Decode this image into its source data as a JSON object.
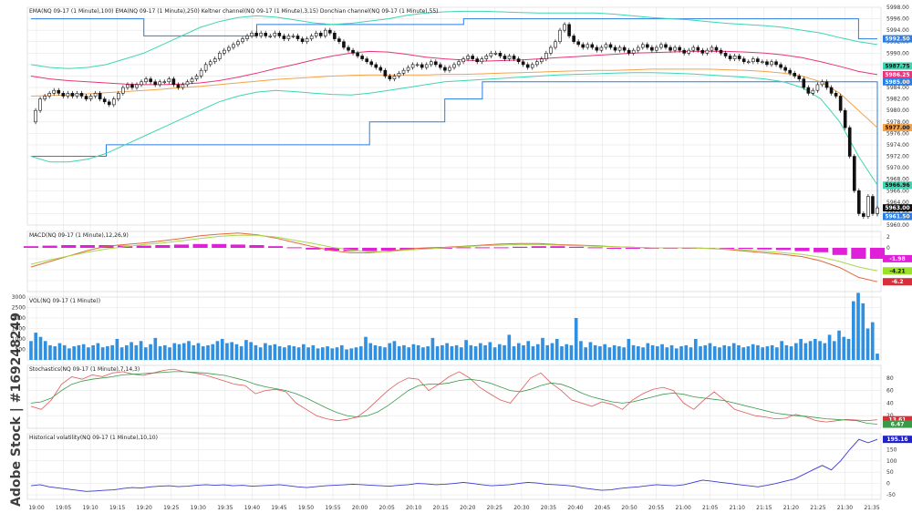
{
  "chart_data": {
    "type": "candlestick",
    "instrument": "NQ 09-17",
    "timeframe": "1 Minute",
    "x_ticks": [
      "19:00",
      "19:05",
      "19:10",
      "19:15",
      "19:20",
      "19:25",
      "19:30",
      "19:35",
      "19:40",
      "19:45",
      "19:50",
      "19:55",
      "20:00",
      "20:05",
      "20:10",
      "20:15",
      "20:20",
      "20:25",
      "20:30",
      "20:35",
      "20:40",
      "20:45",
      "20:50",
      "20:55",
      "21:00",
      "21:05",
      "21:10",
      "21:15",
      "21:20",
      "21:25",
      "21:30",
      "21:35"
    ],
    "watermark": "Adobe Stock | #169248249",
    "colors": {
      "grid": "#e6e6e6",
      "ema100": "#e8347a",
      "ema250": "#f3a24a",
      "keltner": "#3cd6b0",
      "donchian": "#2a7de1",
      "macd_hist": "#e020d8",
      "macd_line": "#e06a3c",
      "signal_line": "#a8d84a",
      "volume": "#2f8fe0",
      "stoch_k": "#e05a5a",
      "stoch_d": "#3a9a4a",
      "vol_line": "#3a3ad0"
    },
    "price_panel": {
      "labels": [
        "EMA(NQ 09-17 (1 Minute),100)",
        "EMA(NQ 09-17 (1 Minute),250)",
        "Keltner channel(NQ 09-17 (1 Minute),3,15)",
        "Donchian channel(NQ 09-17 (1 Minute),55)"
      ],
      "y_ticks": [
        "5998.00",
        "5996.00",
        "5994.00",
        "5992.00",
        "5990.00",
        "5988.00",
        "5986.00",
        "5984.00",
        "5982.00",
        "5980.00",
        "5978.00",
        "5976.00",
        "5974.00",
        "5972.00",
        "5970.00",
        "5968.00",
        "5966.00",
        "5964.00",
        "5962.00",
        "5960.00"
      ],
      "ylim": [
        5960,
        5998
      ],
      "tags": [
        {
          "text": "5992.50",
          "value": 5992.5,
          "color": "#2a7de1"
        },
        {
          "text": "5987.75",
          "value": 5987.75,
          "color": "#3cd6b0"
        },
        {
          "text": "5986.25",
          "value": 5986.25,
          "color": "#e8347a"
        },
        {
          "text": "5985.00",
          "value": 5985.0,
          "color": "#2a7de1"
        },
        {
          "text": "5977.00",
          "value": 5977.0,
          "color": "#f3a24a"
        },
        {
          "text": "5966.96",
          "value": 5966.96,
          "color": "#3cd6b0"
        },
        {
          "text": "5963.00",
          "value": 5963.0,
          "color": "#111111"
        },
        {
          "text": "5961.50",
          "value": 5961.5,
          "color": "#2a7de1"
        }
      ],
      "closes": [
        5978,
        5980,
        5982,
        5982.5,
        5983,
        5983.5,
        5983,
        5982.5,
        5983,
        5982.5,
        5983,
        5982.5,
        5982,
        5982.5,
        5983,
        5982,
        5981.5,
        5981,
        5982,
        5983,
        5984,
        5984.5,
        5984,
        5984.5,
        5985,
        5985.5,
        5985,
        5984.5,
        5985,
        5985,
        5985.5,
        5984.5,
        5984,
        5984.5,
        5985,
        5985.5,
        5986,
        5987,
        5988,
        5988.5,
        5989,
        5990,
        5990.5,
        5991,
        5991.5,
        5992,
        5992.5,
        5993,
        5993.5,
        5993,
        5993.5,
        5993,
        5993,
        5993.5,
        5993,
        5992.5,
        5993,
        5993,
        5992.5,
        5992,
        5992.5,
        5993,
        5993.5,
        5993,
        5994,
        5993.5,
        5992.5,
        5992,
        5991,
        5990.5,
        5990,
        5989.5,
        5989,
        5988.5,
        5988,
        5987.5,
        5987,
        5986,
        5985.5,
        5986,
        5986.5,
        5987,
        5987.5,
        5988,
        5988,
        5987.5,
        5988,
        5988.5,
        5988,
        5987.5,
        5987,
        5987.5,
        5988,
        5988.5,
        5989,
        5989.5,
        5989,
        5988.5,
        5989,
        5989.5,
        5990,
        5990,
        5989.5,
        5989,
        5989.5,
        5989,
        5988.5,
        5988,
        5987.5,
        5988,
        5988.5,
        5989,
        5990,
        5991,
        5992,
        5994,
        5995,
        5993,
        5992,
        5991.5,
        5991,
        5991.5,
        5991,
        5990.5,
        5991,
        5991.5,
        5991,
        5990.5,
        5991,
        5990.5,
        5990,
        5990.5,
        5991,
        5991.5,
        5991,
        5990.5,
        5991,
        5991.5,
        5991,
        5990.5,
        5991,
        5990.5,
        5990,
        5990.5,
        5991,
        5990.5,
        5990,
        5990.5,
        5991,
        5990.5,
        5990,
        5989.5,
        5989,
        5989.5,
        5989,
        5988.5,
        5988.5,
        5989,
        5988.5,
        5988.5,
        5988,
        5988.5,
        5988,
        5987.5,
        5987,
        5986.5,
        5986,
        5985.5,
        5984,
        5983,
        5983.5,
        5984.5,
        5985,
        5984,
        5983,
        5982.5,
        5980,
        5977,
        5972,
        5966,
        5962,
        5961.5,
        5965,
        5962,
        5963
      ],
      "ema100": [
        5986,
        5985.5,
        5985.2,
        5985,
        5984.8,
        5984.6,
        5984.5,
        5984.5,
        5984.6,
        5984.8,
        5985.2,
        5985.8,
        5986.5,
        5987.3,
        5988,
        5988.8,
        5989.5,
        5990,
        5990.3,
        5990.2,
        5989.8,
        5989.3,
        5989,
        5988.8,
        5988.6,
        5988.7,
        5988.8,
        5989,
        5989.2,
        5989.4,
        5989.6,
        5989.8,
        5990,
        5990.1,
        5990.2,
        5990.3,
        5990.3,
        5990.3,
        5990.2,
        5990,
        5989.7,
        5989.2,
        5988.5,
        5987.7,
        5986.8,
        5986.25
      ],
      "ema250": [
        5982.5,
        5982.6,
        5982.7,
        5982.9,
        5983.1,
        5983.3,
        5983.5,
        5983.7,
        5984,
        5984.2,
        5984.5,
        5984.8,
        5985.1,
        5985.4,
        5985.6,
        5985.8,
        5986,
        5986.1,
        5986.2,
        5986.2,
        5986.2,
        5986.2,
        5986.3,
        5986.3,
        5986.4,
        5986.5,
        5986.6,
        5986.7,
        5986.8,
        5986.9,
        5987,
        5987,
        5987.1,
        5987.2,
        5987.2,
        5987.2,
        5987.2,
        5987.1,
        5987,
        5986.8,
        5986.5,
        5986,
        5985,
        5983,
        5980,
        5977
      ],
      "keltner_upper": [
        5988,
        5987.5,
        5987.3,
        5987.5,
        5988,
        5989,
        5990,
        5991.5,
        5993,
        5994.5,
        5995.5,
        5996.2,
        5996.5,
        5996.3,
        5995.8,
        5995.3,
        5995,
        5995.2,
        5995.6,
        5996,
        5996.6,
        5997,
        5997.2,
        5997.3,
        5997.3,
        5997.2,
        5997.1,
        5997,
        5997,
        5997,
        5997,
        5996.8,
        5996.5,
        5996.2,
        5996,
        5995.8,
        5995.5,
        5995.2,
        5995,
        5994.8,
        5994.5,
        5994,
        5993.5,
        5992.7,
        5992,
        5991.5
      ],
      "keltner_lower": [
        5972,
        5971,
        5971,
        5971.5,
        5972.5,
        5974,
        5975.5,
        5977,
        5978.5,
        5980,
        5981.5,
        5982.5,
        5983.2,
        5983.5,
        5983.3,
        5983,
        5982.8,
        5982.7,
        5983,
        5983.5,
        5984,
        5984.5,
        5985,
        5985.2,
        5985.4,
        5985.6,
        5985.8,
        5986,
        5986.2,
        5986.3,
        5986.4,
        5986.5,
        5986.6,
        5986.6,
        5986.5,
        5986.4,
        5986.2,
        5986,
        5985.8,
        5985.5,
        5985,
        5984,
        5982,
        5978,
        5972,
        5967
      ],
      "donchian_upper": [
        5996,
        5996,
        5996,
        5996,
        5996,
        5996,
        5993,
        5993,
        5993,
        5993,
        5993,
        5993,
        5995,
        5995,
        5995,
        5995,
        5995,
        5995,
        5995,
        5995,
        5995,
        5995,
        5995,
        5996,
        5996,
        5996,
        5996,
        5996,
        5996,
        5996,
        5996,
        5996,
        5996,
        5996,
        5996,
        5996,
        5996,
        5996,
        5996,
        5996,
        5996,
        5996,
        5996,
        5996,
        5992.5,
        5992.5
      ],
      "donchian_lower": [
        5972,
        5972,
        5972,
        5972,
        5974,
        5974,
        5974,
        5974,
        5974,
        5974,
        5974,
        5974,
        5974,
        5974,
        5974,
        5974,
        5974,
        5974,
        5978,
        5978,
        5978,
        5978,
        5982,
        5982,
        5985,
        5985,
        5985,
        5985,
        5985,
        5985,
        5985,
        5985,
        5985,
        5985,
        5985,
        5985,
        5985,
        5985,
        5985,
        5985,
        5985,
        5985,
        5985,
        5985,
        5985,
        5961.5
      ]
    },
    "macd_panel": {
      "label": "MACD(NQ 09-17 (1 Minute),12,26,9)",
      "y_ticks": [
        "2",
        "0",
        "-2",
        "-4",
        "-6"
      ],
      "ylim": [
        -8,
        3
      ],
      "tags": [
        {
          "text": "-1.98",
          "value": -1.98,
          "color": "#e020d8"
        },
        {
          "text": "-4.21",
          "value": -4.21,
          "color": "#9be02a"
        },
        {
          "text": "-6.2",
          "value": -6.2,
          "color": "#d8303a"
        }
      ],
      "hist": [
        0.3,
        0.4,
        0.5,
        0.5,
        0.5,
        0.4,
        0.4,
        0.5,
        0.6,
        0.7,
        0.7,
        0.6,
        0.5,
        0.3,
        0.1,
        -0.3,
        -0.5,
        -0.6,
        -0.6,
        -0.5,
        -0.4,
        -0.2,
        0,
        0.1,
        0.1,
        0.1,
        0.2,
        0.3,
        0.3,
        0.2,
        0.1,
        0,
        0,
        0,
        0,
        0,
        0,
        -0.1,
        -0.2,
        -0.3,
        -0.4,
        -0.6,
        -0.8,
        -1.3,
        -2,
        -2
      ],
      "macd_line": [
        -3.5,
        -2.5,
        -1.5,
        -0.5,
        0.3,
        0.6,
        0.9,
        1.3,
        1.7,
        2.2,
        2.5,
        2.7,
        2.4,
        1.8,
        1,
        0.2,
        -0.5,
        -0.9,
        -0.9,
        -0.6,
        -0.2,
        0,
        0.1,
        0.3,
        0.5,
        0.7,
        0.8,
        0.8,
        0.6,
        0.5,
        0.4,
        0.2,
        0.1,
        0,
        0,
        0,
        -0.1,
        -0.3,
        -0.6,
        -0.9,
        -1.2,
        -1.6,
        -2.4,
        -3.6,
        -5.4,
        -6.2
      ],
      "signal_line": [
        -3,
        -2.2,
        -1.5,
        -0.8,
        -0.2,
        0.2,
        0.6,
        0.9,
        1.3,
        1.7,
        2.1,
        2.3,
        2.3,
        2,
        1.4,
        0.8,
        0.1,
        -0.4,
        -0.7,
        -0.7,
        -0.4,
        -0.2,
        0,
        0.2,
        0.4,
        0.5,
        0.6,
        0.6,
        0.5,
        0.4,
        0.3,
        0.2,
        0.1,
        0,
        0,
        0,
        -0.1,
        -0.2,
        -0.4,
        -0.6,
        -0.9,
        -1.2,
        -1.7,
        -2.5,
        -3.5,
        -4.2
      ]
    },
    "volume_panel": {
      "label": "VOL(NQ 09-17 (1 Minute))",
      "y_ticks": [
        "3000",
        "2500",
        "2000",
        "1500",
        "1000",
        "500"
      ],
      "ylim": [
        0,
        3000
      ],
      "values": [
        900,
        1300,
        1100,
        900,
        700,
        650,
        800,
        700,
        550,
        650,
        700,
        750,
        600,
        700,
        800,
        600,
        650,
        700,
        1000,
        600,
        700,
        850,
        700,
        900,
        600,
        750,
        1050,
        650,
        700,
        600,
        800,
        750,
        800,
        900,
        700,
        800,
        650,
        700,
        750,
        900,
        1000,
        800,
        850,
        750,
        650,
        950,
        850,
        700,
        600,
        800,
        700,
        750,
        650,
        600,
        700,
        650,
        600,
        750,
        600,
        700,
        550,
        600,
        650,
        550,
        600,
        700,
        500,
        550,
        600,
        650,
        1100,
        800,
        700,
        650,
        600,
        800,
        900,
        650,
        700,
        600,
        750,
        700,
        600,
        650,
        1050,
        650,
        700,
        800,
        650,
        700,
        600,
        950,
        700,
        650,
        800,
        700,
        850,
        600,
        750,
        700,
        1200,
        650,
        800,
        700,
        900,
        650,
        750,
        1050,
        700,
        800,
        1000,
        650,
        750,
        700,
        2000,
        900,
        600,
        850,
        700,
        650,
        750,
        600,
        700,
        650,
        600,
        1000,
        700,
        650,
        600,
        800,
        700,
        650,
        750,
        600,
        700,
        550,
        650,
        700,
        600,
        1000,
        650,
        700,
        800,
        650,
        600,
        700,
        650,
        800,
        700,
        600,
        650,
        750,
        700,
        600,
        650,
        700,
        600,
        900,
        700,
        650,
        800,
        1000,
        800,
        900,
        1000,
        900,
        800,
        1200,
        900,
        1400,
        1100,
        1000,
        2800,
        3200,
        2700,
        1500,
        1800,
        300
      ],
      "color": "#2f8fe0"
    },
    "stoch_panel": {
      "label": "Stochastics(NQ 09-17 (1 Minute),7,14,3)",
      "y_ticks": [
        "80",
        "60",
        "40",
        "20"
      ],
      "ylim": [
        0,
        100
      ],
      "tags": [
        {
          "text": "13.61",
          "value": 13.61,
          "color": "#d8303a"
        },
        {
          "text": "6.47",
          "value": 6.47,
          "color": "#3a9a4a"
        }
      ],
      "k": [
        35,
        30,
        45,
        70,
        82,
        78,
        85,
        82,
        88,
        90,
        86,
        84,
        88,
        92,
        94,
        90,
        88,
        85,
        80,
        75,
        70,
        68,
        55,
        60,
        62,
        58,
        40,
        30,
        20,
        15,
        12,
        14,
        18,
        30,
        45,
        60,
        72,
        80,
        78,
        60,
        70,
        82,
        90,
        80,
        65,
        55,
        45,
        40,
        60,
        80,
        88,
        72,
        60,
        45,
        40,
        35,
        42,
        38,
        30,
        45,
        55,
        62,
        65,
        60,
        40,
        30,
        45,
        58,
        45,
        30,
        25,
        20,
        18,
        15,
        16,
        22,
        18,
        12,
        10,
        12,
        14,
        13,
        12,
        13.6
      ],
      "d": [
        40,
        42,
        48,
        60,
        70,
        75,
        78,
        80,
        82,
        85,
        86,
        87,
        88,
        89,
        90,
        90,
        89,
        88,
        86,
        84,
        80,
        76,
        70,
        66,
        63,
        60,
        55,
        48,
        40,
        32,
        25,
        20,
        18,
        20,
        26,
        36,
        48,
        60,
        68,
        70,
        70,
        72,
        76,
        78,
        76,
        72,
        66,
        60,
        58,
        62,
        68,
        72,
        70,
        64,
        56,
        50,
        46,
        42,
        40,
        42,
        46,
        50,
        54,
        56,
        54,
        50,
        48,
        46,
        44,
        40,
        36,
        32,
        28,
        24,
        22,
        20,
        19,
        17,
        15,
        14,
        13,
        12,
        8,
        6.47
      ]
    },
    "hv_panel": {
      "label": "Historical volatility(NQ 09-17 (1 Minute),10,10)",
      "y_ticks": [
        "200",
        "150",
        "100",
        "50",
        "0",
        "-50"
      ],
      "ylim": [
        -70,
        220
      ],
      "tags": [
        {
          "text": "195.16",
          "value": 195.16,
          "color": "#2222cc"
        }
      ],
      "values": [
        -10,
        -5,
        -15,
        -20,
        -25,
        -30,
        -35,
        -33,
        -30,
        -28,
        -22,
        -18,
        -20,
        -15,
        -12,
        -10,
        -14,
        -12,
        -8,
        -5,
        -8,
        -6,
        -10,
        -8,
        -12,
        -10,
        -8,
        -5,
        -10,
        -15,
        -18,
        -14,
        -10,
        -8,
        -6,
        -3,
        -5,
        -8,
        -10,
        -12,
        -8,
        -5,
        0,
        -2,
        -5,
        -3,
        0,
        5,
        0,
        -5,
        -10,
        -8,
        -5,
        0,
        5,
        2,
        -3,
        -5,
        -8,
        -12,
        -20,
        -25,
        -30,
        -28,
        -22,
        -18,
        -15,
        -10,
        -5,
        -8,
        -10,
        -5,
        5,
        15,
        10,
        5,
        0,
        -5,
        -10,
        -15,
        -8,
        0,
        10,
        20,
        40,
        60,
        80,
        60,
        100,
        150,
        195,
        180,
        195
      ]
    }
  }
}
